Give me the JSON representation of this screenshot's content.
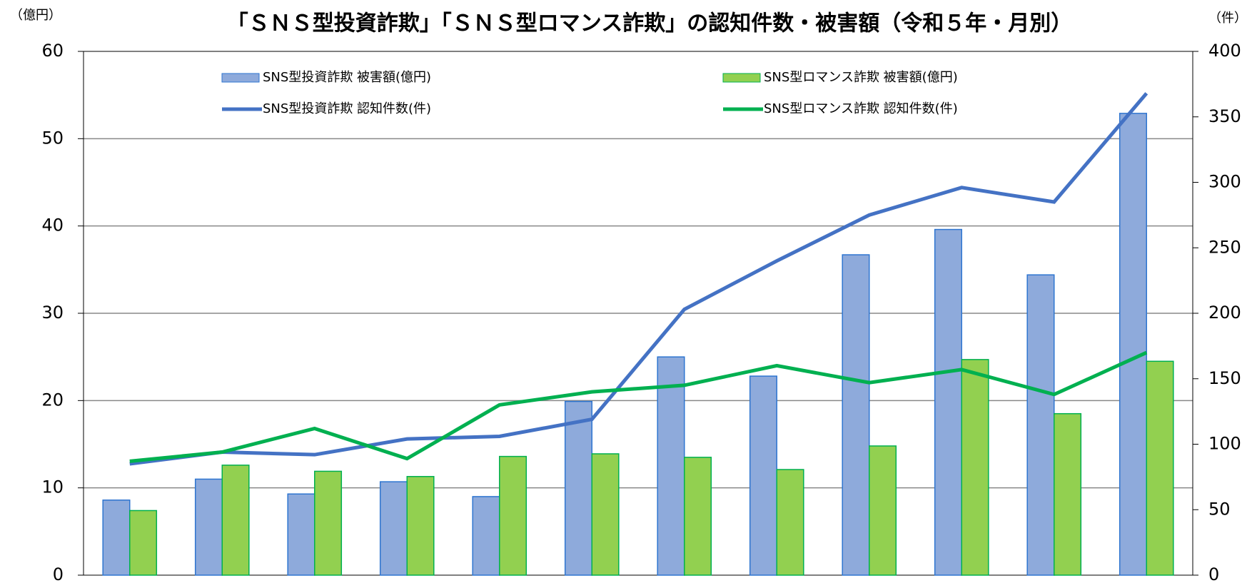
{
  "chart_data": {
    "type": "bar_line",
    "title": "「ＳＮＳ型投資詐欺」「ＳＮＳ型ロマンス詐欺」の認知件数・被害額（令和５年・月別）",
    "y_unit": "（億円）",
    "y2_unit": "（件）",
    "categories": [
      null,
      null,
      null,
      null,
      null,
      null,
      null,
      null,
      null,
      null,
      null,
      null
    ],
    "series": [
      {
        "name": "SNS型投資詐欺 被害額(億円)",
        "type": "bar",
        "color": "#8eaadb",
        "edge": "#2e75d0",
        "values": [
          8.6,
          11.0,
          9.3,
          10.7,
          9.0,
          19.9,
          25.0,
          22.8,
          36.7,
          39.6,
          34.4,
          52.9
        ]
      },
      {
        "name": "SNS型ロマンス詐欺 被害額(億円)",
        "type": "bar",
        "color": "#92d050",
        "edge": "#00b050",
        "values": [
          7.4,
          12.6,
          11.9,
          11.3,
          13.6,
          13.9,
          13.5,
          12.1,
          14.8,
          24.7,
          18.5,
          24.5
        ]
      },
      {
        "name": "SNS型投資詐欺 認知件数(件)",
        "type": "line",
        "axis": "y2",
        "color": "#4472c4",
        "values": [
          85,
          94,
          92,
          104,
          106,
          119,
          203,
          240,
          275,
          296,
          285,
          368
        ]
      },
      {
        "name": "SNS型ロマンス詐欺 認知件数(件)",
        "type": "line",
        "axis": "y2",
        "color": "#00b050",
        "values": [
          87,
          94,
          112,
          89,
          130,
          140,
          145,
          160,
          147,
          157,
          138,
          170
        ]
      }
    ],
    "ylim": [
      0,
      60
    ],
    "yticks": [
      0,
      10,
      20,
      30,
      40,
      50,
      60
    ],
    "y2lim": [
      0,
      400
    ],
    "y2ticks": [
      0,
      50,
      100,
      150,
      200,
      250,
      300,
      350,
      400
    ],
    "grid": true
  }
}
